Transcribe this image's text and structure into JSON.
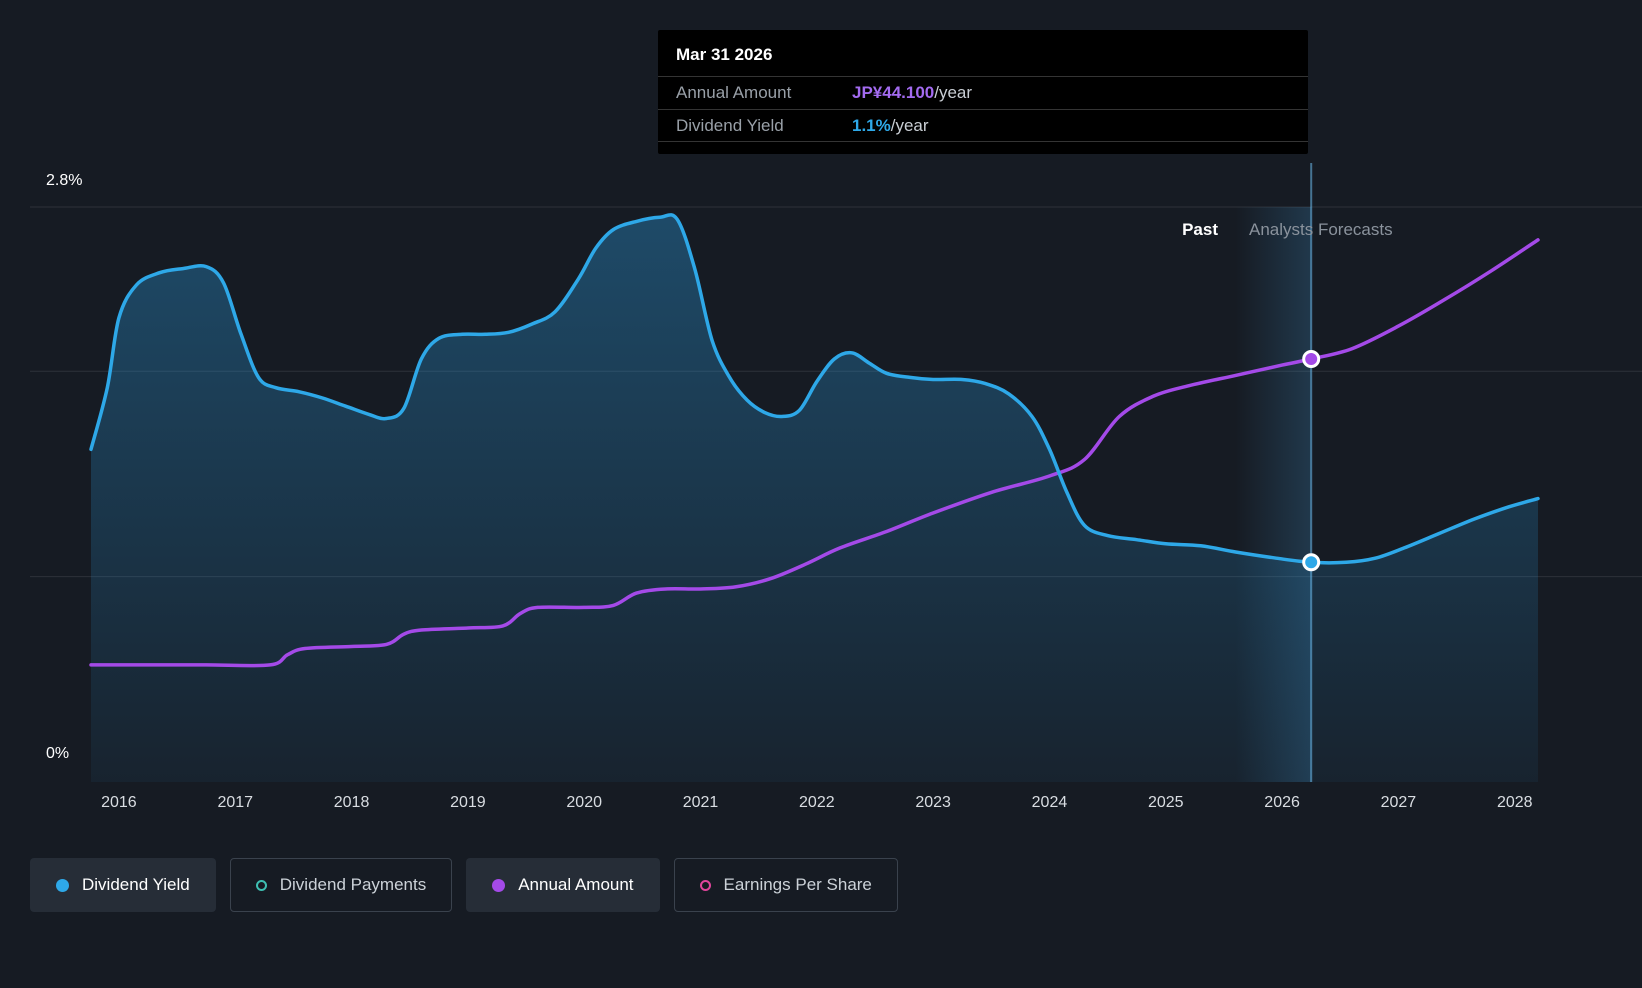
{
  "tooltip": {
    "date": "Mar 31 2026",
    "rows": [
      {
        "label": "Annual Amount",
        "value": "JP¥44.100",
        "suffix": "/year",
        "color": "#a36bf0"
      },
      {
        "label": "Dividend Yield",
        "value": "1.1%",
        "suffix": "/year",
        "color": "#2ea8e8"
      }
    ]
  },
  "chart_data": {
    "type": "line",
    "x_ticks": [
      "2016",
      "2017",
      "2018",
      "2019",
      "2020",
      "2021",
      "2022",
      "2023",
      "2024",
      "2025",
      "2026",
      "2027",
      "2028"
    ],
    "x_range": [
      2015.76,
      2028.2
    ],
    "ylim": [
      0,
      2.8
    ],
    "y_axis_labels": {
      "top": "2.8%",
      "bottom": "0%"
    },
    "gridline_values": [
      2.8,
      2.0,
      1.0
    ],
    "past_label": "Past",
    "forecast_label": "Analysts Forecasts",
    "forecast_start_x": 2025.6,
    "highlight_x": 2026.25,
    "series": [
      {
        "name": "Dividend Yield",
        "color": "#2ea8e8",
        "style": "area-line",
        "unit": "%",
        "points": [
          [
            2015.76,
            1.62
          ],
          [
            2015.9,
            1.92
          ],
          [
            2016.0,
            2.26
          ],
          [
            2016.15,
            2.42
          ],
          [
            2016.35,
            2.48
          ],
          [
            2016.55,
            2.5
          ],
          [
            2016.75,
            2.51
          ],
          [
            2016.9,
            2.43
          ],
          [
            2017.05,
            2.18
          ],
          [
            2017.2,
            1.97
          ],
          [
            2017.35,
            1.92
          ],
          [
            2017.55,
            1.9
          ],
          [
            2017.75,
            1.87
          ],
          [
            2017.95,
            1.83
          ],
          [
            2018.15,
            1.79
          ],
          [
            2018.3,
            1.77
          ],
          [
            2018.45,
            1.82
          ],
          [
            2018.6,
            2.06
          ],
          [
            2018.75,
            2.16
          ],
          [
            2018.95,
            2.18
          ],
          [
            2019.15,
            2.18
          ],
          [
            2019.35,
            2.19
          ],
          [
            2019.55,
            2.23
          ],
          [
            2019.75,
            2.29
          ],
          [
            2019.95,
            2.45
          ],
          [
            2020.1,
            2.6
          ],
          [
            2020.25,
            2.69
          ],
          [
            2020.45,
            2.73
          ],
          [
            2020.65,
            2.75
          ],
          [
            2020.8,
            2.74
          ],
          [
            2020.95,
            2.5
          ],
          [
            2021.1,
            2.15
          ],
          [
            2021.25,
            1.97
          ],
          [
            2021.4,
            1.86
          ],
          [
            2021.55,
            1.8
          ],
          [
            2021.7,
            1.78
          ],
          [
            2021.85,
            1.81
          ],
          [
            2022.0,
            1.95
          ],
          [
            2022.15,
            2.06
          ],
          [
            2022.3,
            2.09
          ],
          [
            2022.45,
            2.04
          ],
          [
            2022.6,
            1.99
          ],
          [
            2022.8,
            1.97
          ],
          [
            2023.0,
            1.96
          ],
          [
            2023.25,
            1.96
          ],
          [
            2023.45,
            1.94
          ],
          [
            2023.65,
            1.89
          ],
          [
            2023.85,
            1.78
          ],
          [
            2024.0,
            1.62
          ],
          [
            2024.15,
            1.41
          ],
          [
            2024.3,
            1.25
          ],
          [
            2024.5,
            1.2
          ],
          [
            2024.75,
            1.18
          ],
          [
            2025.0,
            1.16
          ],
          [
            2025.3,
            1.15
          ],
          [
            2025.6,
            1.12
          ],
          [
            2025.95,
            1.09
          ],
          [
            2026.25,
            1.07
          ],
          [
            2026.55,
            1.07
          ],
          [
            2026.8,
            1.09
          ],
          [
            2027.05,
            1.14
          ],
          [
            2027.35,
            1.21
          ],
          [
            2027.65,
            1.28
          ],
          [
            2027.95,
            1.34
          ],
          [
            2028.2,
            1.38
          ]
        ]
      },
      {
        "name": "Annual Amount",
        "color": "#a44ae8",
        "style": "line",
        "unit": "JP¥/year plotted on display scale; JP¥44.100 at marker x=2026.25",
        "points": [
          [
            2015.76,
            0.57
          ],
          [
            2016.25,
            0.57
          ],
          [
            2016.75,
            0.57
          ],
          [
            2017.3,
            0.57
          ],
          [
            2017.45,
            0.62
          ],
          [
            2017.6,
            0.65
          ],
          [
            2018.0,
            0.66
          ],
          [
            2018.3,
            0.67
          ],
          [
            2018.45,
            0.72
          ],
          [
            2018.6,
            0.74
          ],
          [
            2019.0,
            0.75
          ],
          [
            2019.3,
            0.76
          ],
          [
            2019.45,
            0.82
          ],
          [
            2019.6,
            0.85
          ],
          [
            2020.0,
            0.85
          ],
          [
            2020.25,
            0.86
          ],
          [
            2020.45,
            0.92
          ],
          [
            2020.7,
            0.94
          ],
          [
            2021.0,
            0.94
          ],
          [
            2021.3,
            0.95
          ],
          [
            2021.6,
            0.99
          ],
          [
            2021.9,
            1.06
          ],
          [
            2022.2,
            1.14
          ],
          [
            2022.6,
            1.22
          ],
          [
            2023.0,
            1.31
          ],
          [
            2023.5,
            1.41
          ],
          [
            2024.0,
            1.49
          ],
          [
            2024.3,
            1.57
          ],
          [
            2024.6,
            1.78
          ],
          [
            2024.9,
            1.88
          ],
          [
            2025.2,
            1.93
          ],
          [
            2025.6,
            1.98
          ],
          [
            2026.0,
            2.03
          ],
          [
            2026.25,
            2.06
          ],
          [
            2026.6,
            2.11
          ],
          [
            2027.0,
            2.22
          ],
          [
            2027.4,
            2.35
          ],
          [
            2027.8,
            2.49
          ],
          [
            2028.2,
            2.64
          ]
        ]
      }
    ],
    "markers": [
      {
        "series": "Annual Amount",
        "x": 2026.25,
        "y": 2.06,
        "color": "#a44ae8"
      },
      {
        "series": "Dividend Yield",
        "x": 2026.25,
        "y": 1.07,
        "color": "#2ea8e8"
      }
    ]
  },
  "legend": {
    "items": [
      {
        "label": "Dividend Yield",
        "color": "#2ea8e8",
        "marker": "filled",
        "active": true
      },
      {
        "label": "Dividend Payments",
        "color": "#3ebfb2",
        "marker": "outline",
        "active": false
      },
      {
        "label": "Annual Amount",
        "color": "#a44ae8",
        "marker": "filled",
        "active": true
      },
      {
        "label": "Earnings Per Share",
        "color": "#e1459c",
        "marker": "outline",
        "active": false
      }
    ]
  }
}
